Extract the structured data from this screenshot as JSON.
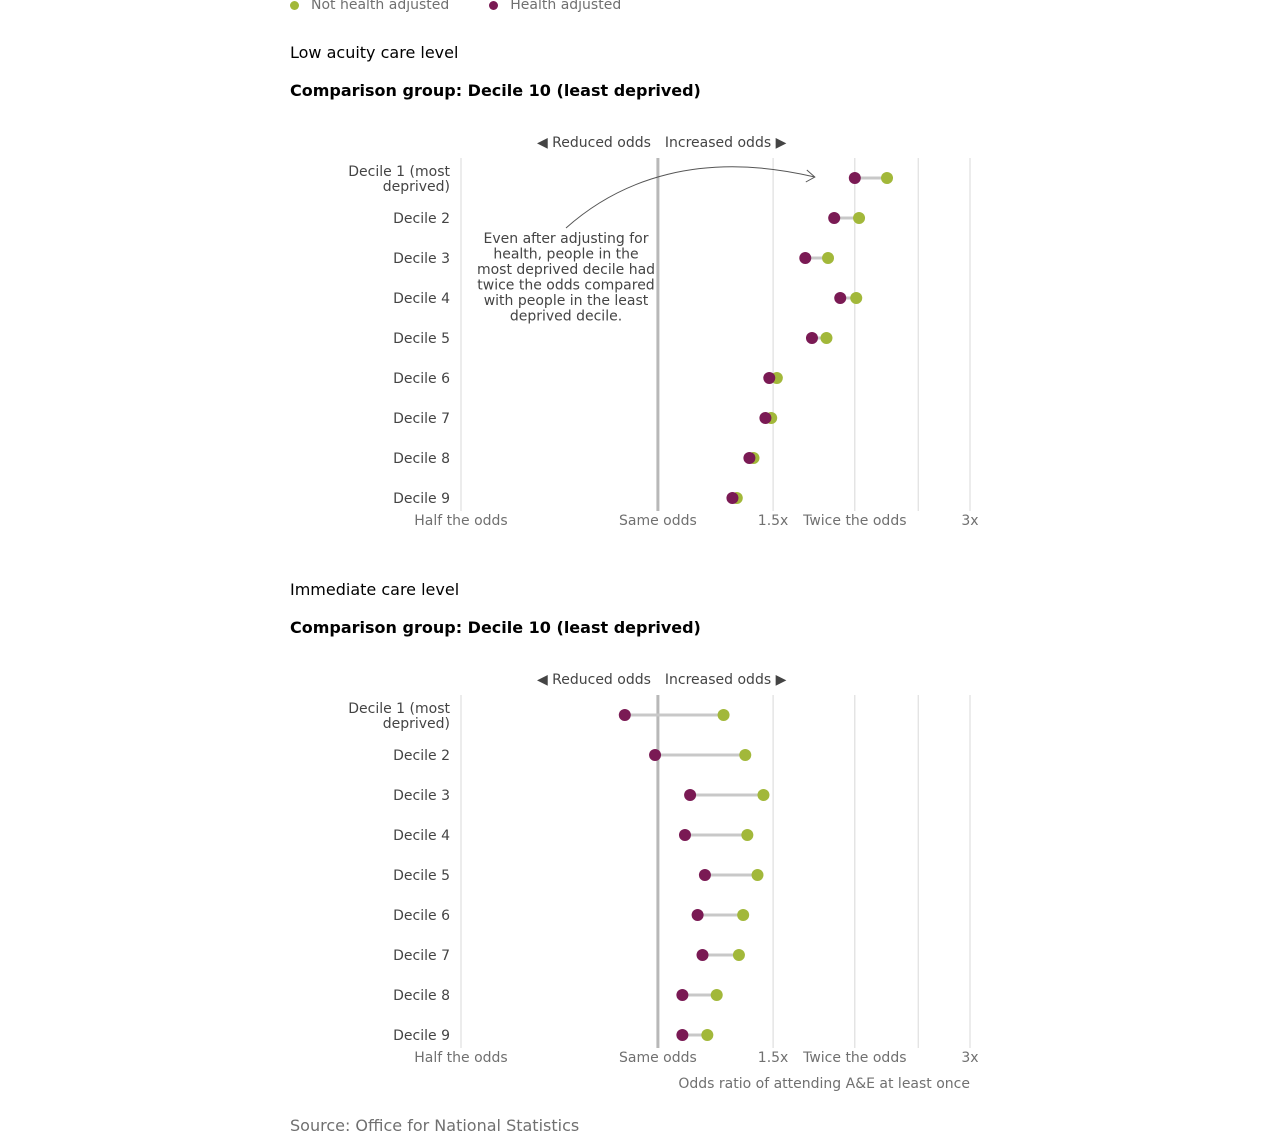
{
  "legend": [
    {
      "label": "Not health adjusted",
      "color": "#a2b83a"
    },
    {
      "label": "Health adjusted",
      "color": "#7a1a54"
    }
  ],
  "source": "Source: Office for National Statistics",
  "colors": {
    "not_adjusted": "#a2b83a",
    "adjusted": "#7a1a54",
    "connector": "#c8c8c8",
    "grid": "#d8d8d8",
    "refline": "#b8b8b8"
  },
  "chart_data": [
    {
      "type": "dumbbell",
      "title": "Low acuity care level",
      "subtitle": "Comparison group: Decile 10 (least deprived)",
      "direction_labels": [
        "◀ Reduced odds",
        "Increased odds ▶"
      ],
      "xscale": "log",
      "xlim": [
        0.5,
        3
      ],
      "xticks": [
        {
          "value": 0.5,
          "label": "Half the odds"
        },
        {
          "value": 1,
          "label": "Same odds"
        },
        {
          "value": 1.5,
          "label": "1.5x"
        },
        {
          "value": 2,
          "label": "Twice the odds"
        },
        {
          "value": 2.5,
          "label": ""
        },
        {
          "value": 3,
          "label": "3x"
        }
      ],
      "categories": [
        "Decile 1 (most deprived)",
        "Decile 2",
        "Decile 3",
        "Decile 4",
        "Decile 5",
        "Decile 6",
        "Decile 7",
        "Decile 8",
        "Decile 9"
      ],
      "series": [
        {
          "name": "Not health adjusted",
          "values": [
            2.24,
            2.03,
            1.82,
            2.01,
            1.81,
            1.52,
            1.49,
            1.4,
            1.32
          ]
        },
        {
          "name": "Health adjusted",
          "values": [
            2.0,
            1.86,
            1.68,
            1.9,
            1.72,
            1.48,
            1.46,
            1.38,
            1.3
          ]
        }
      ],
      "annotation": "Even after adjusting for health, people in the most deprived decile had twice the odds compared with people in the least deprived decile."
    },
    {
      "type": "dumbbell",
      "title": "Immediate care level",
      "subtitle": "Comparison group: Decile 10 (least deprived)",
      "direction_labels": [
        "◀ Reduced odds",
        "Increased odds ▶"
      ],
      "xscale": "log",
      "xlim": [
        0.5,
        3
      ],
      "xticks": [
        {
          "value": 0.5,
          "label": "Half the odds"
        },
        {
          "value": 1,
          "label": "Same odds"
        },
        {
          "value": 1.5,
          "label": "1.5x"
        },
        {
          "value": 2,
          "label": "Twice the odds"
        },
        {
          "value": 2.5,
          "label": ""
        },
        {
          "value": 3,
          "label": "3x"
        }
      ],
      "categories": [
        "Decile 1 (most deprived)",
        "Decile 2",
        "Decile 3",
        "Decile 4",
        "Decile 5",
        "Decile 6",
        "Decile 7",
        "Decile 8",
        "Decile 9"
      ],
      "series": [
        {
          "name": "Not health adjusted",
          "values": [
            1.26,
            1.36,
            1.45,
            1.37,
            1.42,
            1.35,
            1.33,
            1.23,
            1.19
          ]
        },
        {
          "name": "Health adjusted",
          "values": [
            0.89,
            0.99,
            1.12,
            1.1,
            1.18,
            1.15,
            1.17,
            1.09,
            1.09
          ]
        }
      ],
      "xlabel": "Odds ratio of attending A&E at least once"
    }
  ]
}
